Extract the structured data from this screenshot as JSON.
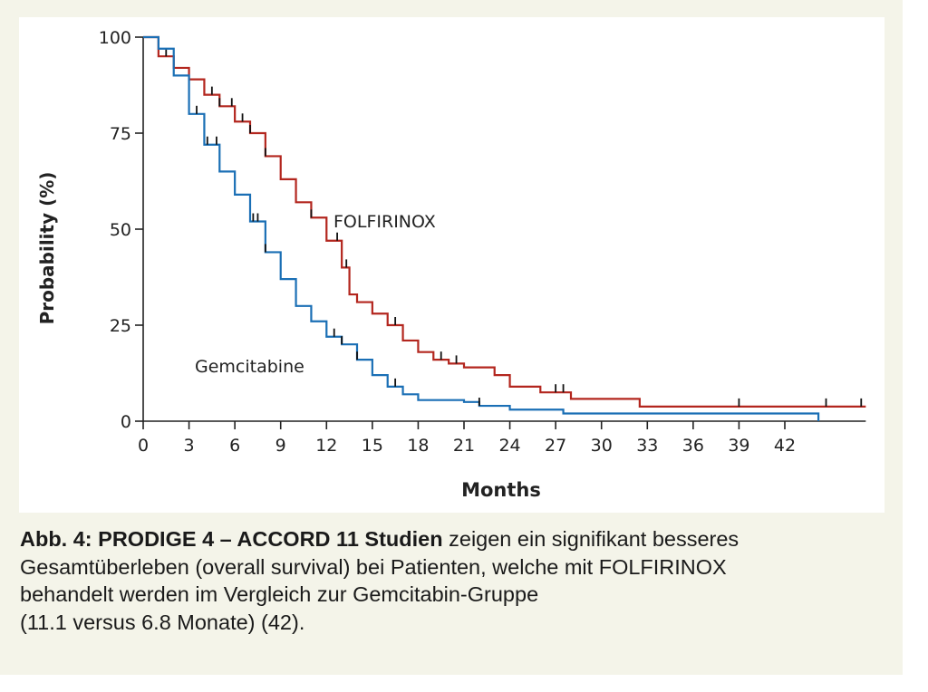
{
  "chart_data": {
    "type": "line",
    "subtype": "kaplan-meier",
    "title": "",
    "xlabel": "Months",
    "ylabel": "Probability (%)",
    "xlim": [
      0,
      47.3
    ],
    "ylim": [
      0,
      100
    ],
    "xticks": [
      0,
      3,
      6,
      9,
      12,
      15,
      18,
      21,
      24,
      27,
      30,
      33,
      36,
      39,
      42
    ],
    "yticks": [
      0,
      25,
      50,
      75,
      100
    ],
    "grid": false,
    "colors": {
      "FOLFIRINOX": "#b3261e",
      "Gemcitabine": "#1a6fb5",
      "censor": "#111111"
    },
    "series": [
      {
        "name": "FOLFIRINOX",
        "x": [
          0,
          1,
          2,
          3,
          4,
          5,
          6,
          7,
          8,
          9,
          10,
          11,
          12,
          13,
          13.5,
          14,
          15,
          16,
          17,
          18,
          19,
          20,
          21,
          23,
          24,
          26,
          28,
          32.5,
          47.3
        ],
        "y": [
          100,
          95,
          92,
          89,
          85,
          82,
          78,
          75,
          69,
          63,
          57,
          53,
          47,
          40,
          33,
          31,
          28,
          25,
          21,
          18,
          16,
          15,
          14,
          12,
          9,
          7.5,
          5.8,
          3.8,
          3.8
        ],
        "censored": [
          1.5,
          4.5,
          5,
          5.8,
          6.5,
          7,
          8,
          11,
          12.7,
          13.3,
          16.5,
          19.5,
          20.5,
          27,
          27.5,
          39,
          44.7,
          47
        ]
      },
      {
        "name": "Gemcitabine",
        "x": [
          0,
          1,
          2,
          3,
          4,
          5,
          6,
          7,
          8,
          9,
          10,
          11,
          12,
          13,
          14,
          15,
          16,
          17,
          18,
          21,
          22,
          24,
          27.5,
          44.2
        ],
        "y": [
          100,
          97,
          90,
          80,
          72,
          65,
          59,
          52,
          44,
          37,
          30,
          26,
          22,
          20,
          16,
          12,
          9,
          7,
          5.5,
          5,
          4,
          3,
          2,
          0
        ],
        "censored": [
          3.5,
          4.2,
          4.8,
          7.2,
          7.5,
          8,
          12.5,
          13,
          14,
          16.5,
          22
        ]
      }
    ],
    "annotations": [
      "FOLFIRINOX",
      "Gemcitabine"
    ]
  },
  "caption": {
    "bold": "Abb. 4: PRODIGE 4 – ACCORD 11 Studien",
    "line1_rest": " zeigen ein signifikant besseres",
    "line2": "Gesamtüberleben (overall survival) bei Patienten, welche mit FOLFIRINOX",
    "line3": "behandelt werden im Vergleich zur Gemcitabin-Gruppe",
    "line4": "(11.1 versus 6.8 Monate) (42)."
  }
}
